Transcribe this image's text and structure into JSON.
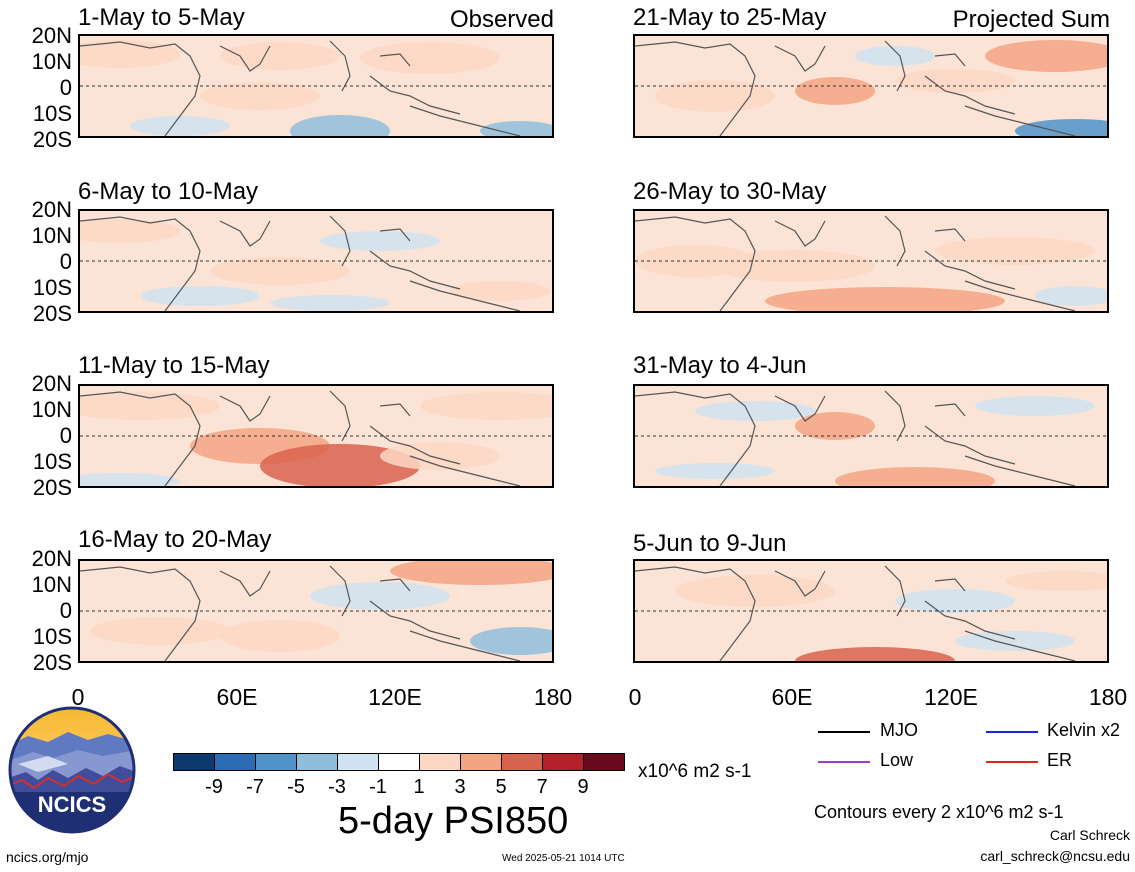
{
  "panels": [
    {
      "title": "1-May to 5-May",
      "tag": "Observed"
    },
    {
      "title": "6-May to 10-May",
      "tag": ""
    },
    {
      "title": "11-May to 15-May",
      "tag": ""
    },
    {
      "title": "16-May to 20-May",
      "tag": ""
    },
    {
      "title": "21-May to 25-May",
      "tag": "Projected Sum"
    },
    {
      "title": "26-May to 30-May",
      "tag": ""
    },
    {
      "title": "31-May to 4-Jun",
      "tag": ""
    },
    {
      "title": "5-Jun to 9-Jun",
      "tag": ""
    }
  ],
  "lat_labels": [
    "20N",
    "10N",
    "0",
    "10S",
    "20S"
  ],
  "lon_labels": [
    "0",
    "60E",
    "120E",
    "180"
  ],
  "colorbar": {
    "colors": [
      "#0d3a6e",
      "#2b6cb5",
      "#4f93c9",
      "#8fbedd",
      "#cfe3f1",
      "#ffffff",
      "#fcd8c4",
      "#f3a582",
      "#d9634f",
      "#b5202b",
      "#6b0a1f"
    ],
    "ticks": [
      "-9",
      "-7",
      "-5",
      "-3",
      "-1",
      "1",
      "3",
      "5",
      "7",
      "9"
    ],
    "units": "x10^6 m2 s-1"
  },
  "main_title": "5-day PSI850",
  "legend": [
    {
      "label": "MJO",
      "color": "#000000"
    },
    {
      "label": "Kelvin x2",
      "color": "#1a24e0"
    },
    {
      "label": "Low",
      "color": "#a23ad8"
    },
    {
      "label": "ER",
      "color": "#e2231a"
    }
  ],
  "contour_note": "Contours every 2 x10^6 m2 s-1",
  "author": "Carl Schreck",
  "email": "carl_schreck@ncsu.edu",
  "site": "ncics.org/mjo",
  "timestamp": "Wed 2025-05-21 1014 UTC",
  "logo_text": "NCICS"
}
